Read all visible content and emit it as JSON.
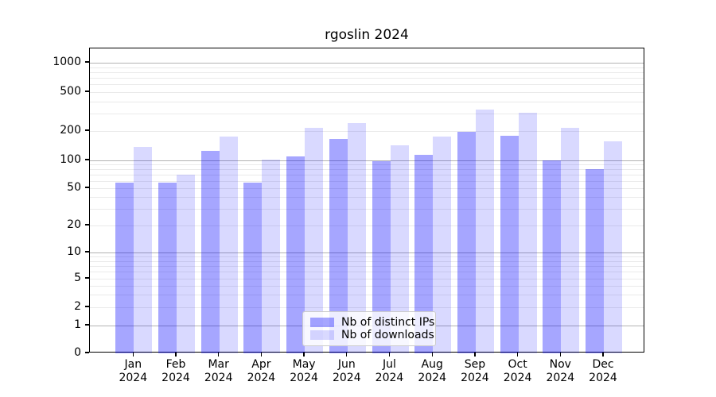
{
  "chart_data": {
    "type": "bar",
    "title": "rgoslin 2024",
    "categories": [
      "Jan 2024",
      "Feb 2024",
      "Mar 2024",
      "Apr 2024",
      "May 2024",
      "Jun 2024",
      "Jul 2024",
      "Aug 2024",
      "Sep 2024",
      "Oct 2024",
      "Nov 2024",
      "Dec 2024"
    ],
    "series": [
      {
        "name": "Nb of distinct IPs",
        "color": "rgba(0,0,255,0.35)",
        "values": [
          57,
          57,
          125,
          58,
          110,
          165,
          98,
          113,
          198,
          179,
          100,
          80
        ]
      },
      {
        "name": "Nb of downloads",
        "color": "rgba(0,0,255,0.15)",
        "values": [
          137,
          70,
          176,
          101,
          216,
          240,
          143,
          176,
          330,
          305,
          216,
          156
        ]
      }
    ],
    "yscale": "symlog",
    "ytick_labels": [
      0,
      1,
      2,
      5,
      10,
      20,
      50,
      100,
      200,
      500,
      1000
    ],
    "ylim": [
      0,
      1400
    ],
    "xlabel": "",
    "ylabel": "",
    "grid": true,
    "legend_position": "lower-center-inside"
  },
  "colors": {
    "bar_distinct_ips_hex": "#a6a6ff",
    "bar_downloads_hex": "#d9d9ff",
    "grid_major": "#b3b3b3",
    "grid_minor": "#eaeaea",
    "axis": "#000000",
    "background": "#ffffff",
    "legend_border": "#cccccc"
  }
}
